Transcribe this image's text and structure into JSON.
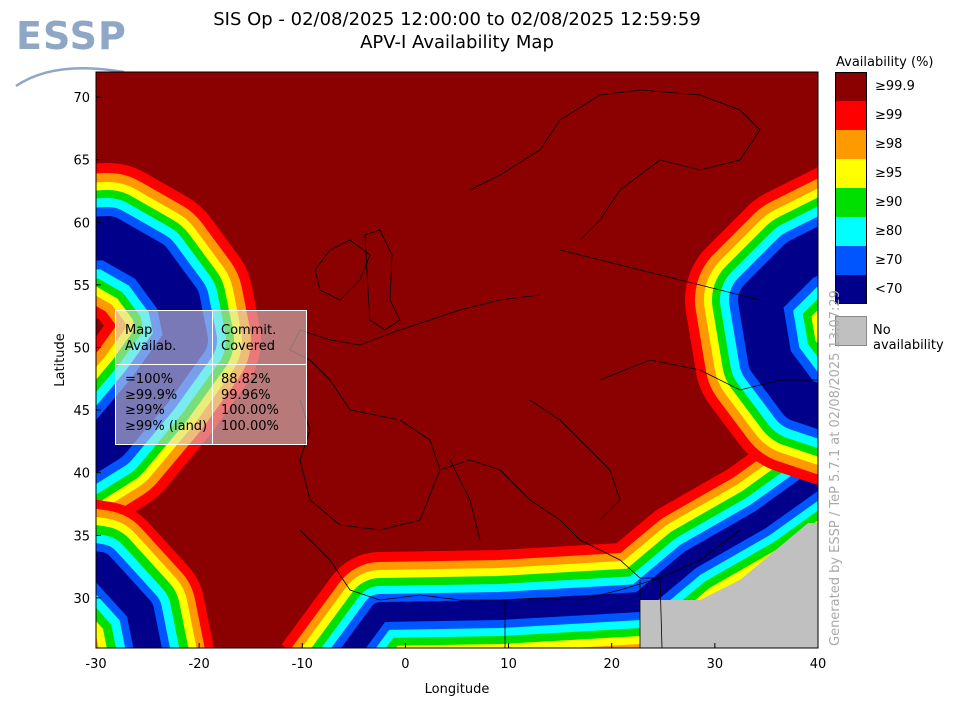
{
  "header": {
    "title_line1": "SIS Op - 02/08/2025 12:00:00 to 02/08/2025 12:59:59",
    "title_line2": "APV-I Availability Map"
  },
  "logo": {
    "text": "ESSP"
  },
  "chart_data": {
    "type": "heatmap",
    "title": "APV-I Availability Map",
    "xlabel": "Longitude",
    "ylabel": "Latitude",
    "xlim": [
      -30,
      40
    ],
    "ylim": [
      26,
      72
    ],
    "xticks": [
      -30,
      -20,
      -10,
      0,
      10,
      20,
      30,
      40
    ],
    "yticks": [
      30,
      35,
      40,
      45,
      50,
      55,
      60,
      65,
      70
    ],
    "grid": false,
    "legend_placement": "right",
    "legend": {
      "title": "Availability (%)",
      "levels": [
        {
          "label": "≥99.9",
          "color": "#8b0000"
        },
        {
          "label": "≥99",
          "color": "#ff0000"
        },
        {
          "label": "≥98",
          "color": "#ff9900"
        },
        {
          "label": "≥95",
          "color": "#ffff00"
        },
        {
          "label": "≥90",
          "color": "#00e000"
        },
        {
          "label": "≥80",
          "color": "#00ffff"
        },
        {
          "label": "≥70",
          "color": "#0055ff"
        },
        {
          "label": "<70",
          "color": "#00008b"
        }
      ],
      "no_availability": {
        "label": "No availability",
        "color": "#c0c0c0"
      }
    },
    "summary_table": {
      "headers": [
        "Map\nAvailab.",
        "Commit.\nCovered"
      ],
      "rows": [
        [
          "=100%",
          "88.82%"
        ],
        [
          "≥99.9%",
          "99.96%"
        ],
        [
          "≥99%",
          "100.00%"
        ],
        [
          "≥99% (land)",
          "100.00%"
        ]
      ]
    }
  },
  "footer_vertical": "Generated by ESSP / TeP 5.7.1 at 02/08/2025 13:07:29"
}
